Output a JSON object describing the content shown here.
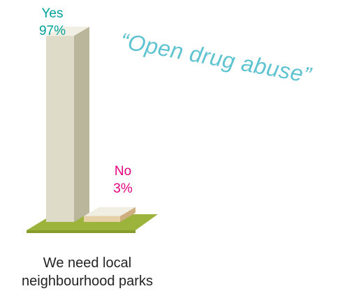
{
  "chart_data": {
    "type": "bar",
    "title": "",
    "caption": "We need local neighbourhood parks",
    "categories": [
      "Yes",
      "No"
    ],
    "values": [
      97,
      3
    ],
    "value_labels": [
      "97%",
      "3%"
    ],
    "ylim": [
      0,
      100
    ],
    "grid": false,
    "colors": {
      "yes_text": "#00a19a",
      "no_text": "#e5007e",
      "quote_text": "#5ec3d1",
      "bar_front": "#dedbc8",
      "bar_side": "#b9b69c",
      "bar_top": "#f1efe3",
      "short_bar_front": "#e7cfa8",
      "short_bar_side": "#cfae80",
      "ground": "#9cb33c",
      "ground_dark": "#879e2d"
    }
  },
  "annotation": {
    "quote": "“Open drug abuse”"
  }
}
